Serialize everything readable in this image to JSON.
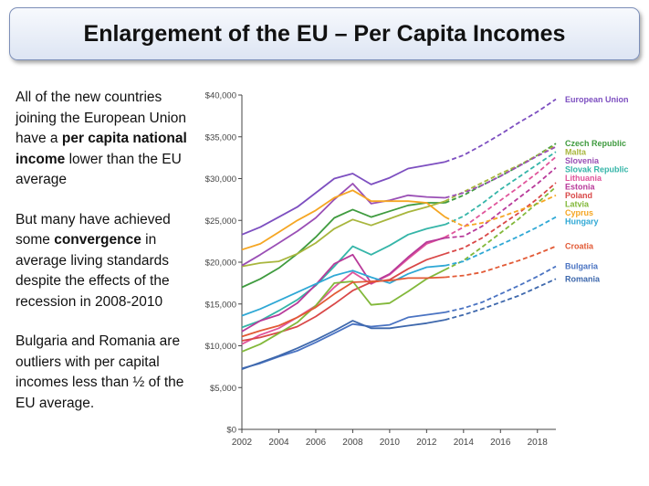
{
  "slide": {
    "title": "Enlargement of the EU – Per Capita Incomes",
    "para1": {
      "t1": "All of the new countries joining the European Union have a ",
      "b1": "per capita national income",
      "t2": " lower than the EU average"
    },
    "para2": {
      "t1": "But many have achieved some ",
      "b1": "convergence",
      "t2": " in average living standards despite the effects of the recession in 2008-2010"
    },
    "para3": "Bulgaria and Romania are outliers with per capital incomes less than ½ of the EU average."
  },
  "chart_data": {
    "type": "line",
    "x": [
      2002,
      2003,
      2004,
      2005,
      2006,
      2007,
      2008,
      2009,
      2010,
      2011,
      2012,
      2013,
      2014,
      2015,
      2016,
      2017,
      2018,
      2019
    ],
    "actual_until": 2013,
    "xticks": [
      2002,
      2004,
      2006,
      2008,
      2010,
      2012,
      2014,
      2016,
      2018
    ],
    "yticks": [
      "$0",
      "$5,000",
      "$10,000",
      "$15,000",
      "$20,000",
      "$25,000",
      "$30,000",
      "$35,000",
      "$40,000"
    ],
    "ylim": [
      0,
      40000
    ],
    "grid": false,
    "legend": "right",
    "series": [
      {
        "name": "European Union",
        "color": "#7d4fc0",
        "values": [
          23300,
          24200,
          25400,
          26600,
          28300,
          30000,
          30600,
          29300,
          30100,
          31200,
          31600,
          32000,
          32800,
          34000,
          35300,
          36700,
          38000,
          39500
        ]
      },
      {
        "name": "Czech Republic",
        "color": "#3f9b3f",
        "values": [
          17000,
          18000,
          19300,
          21000,
          23000,
          25300,
          26300,
          25400,
          26100,
          26800,
          27100,
          27100,
          28000,
          29200,
          30300,
          31500,
          32800,
          34200
        ]
      },
      {
        "name": "Malta",
        "color": "#a8b63d",
        "values": [
          19500,
          19900,
          20100,
          21000,
          22300,
          24000,
          25100,
          24400,
          25200,
          26000,
          26600,
          27300,
          28400,
          29500,
          30600,
          31600,
          32800,
          34000
        ]
      },
      {
        "name": "Slovenia",
        "color": "#9a4fb5",
        "values": [
          19600,
          20900,
          22300,
          23700,
          25300,
          27500,
          29400,
          27000,
          27400,
          28000,
          27800,
          27700,
          28300,
          29200,
          30300,
          31500,
          32700,
          33800
        ]
      },
      {
        "name": "Slovak Republic",
        "color": "#35b5a8",
        "values": [
          12200,
          13000,
          14200,
          15500,
          17200,
          19500,
          21900,
          20900,
          22000,
          23300,
          24000,
          24500,
          25500,
          27000,
          28700,
          30200,
          31700,
          33200
        ]
      },
      {
        "name": "Lithuania",
        "color": "#e0559b",
        "values": [
          10200,
          11300,
          12100,
          13400,
          14800,
          17000,
          18800,
          17400,
          18500,
          20400,
          22200,
          23000,
          24200,
          25800,
          27400,
          29000,
          30700,
          32600
        ]
      },
      {
        "name": "Estonia",
        "color": "#b83a9a",
        "values": [
          11700,
          13000,
          13700,
          15100,
          17300,
          19800,
          20900,
          17500,
          18600,
          20600,
          22400,
          22900,
          23100,
          24300,
          26000,
          27700,
          29400,
          31300
        ]
      },
      {
        "name": "Poland",
        "color": "#d94848",
        "values": [
          10600,
          11000,
          11600,
          12300,
          13500,
          15000,
          16600,
          17600,
          17900,
          19200,
          20300,
          21000,
          21700,
          22900,
          24400,
          25900,
          27600,
          29500
        ]
      },
      {
        "name": "Cyprus",
        "color": "#f5a623",
        "values": [
          21500,
          22200,
          23600,
          25000,
          26200,
          27700,
          28600,
          27300,
          27300,
          27300,
          27100,
          25400,
          24300,
          24700,
          25400,
          26200,
          27000,
          28000
        ]
      },
      {
        "name": "Latvia",
        "color": "#82b83a",
        "values": [
          9300,
          10200,
          11500,
          12800,
          14800,
          17500,
          17700,
          14900,
          15100,
          16500,
          18000,
          19100,
          20200,
          21800,
          23500,
          25200,
          27100,
          29000
        ]
      },
      {
        "name": "Hungary",
        "color": "#2fa8d5",
        "values": [
          13600,
          14400,
          15400,
          16400,
          17400,
          18400,
          19000,
          18200,
          17500,
          18600,
          19400,
          19600,
          20100,
          21100,
          22100,
          23100,
          24200,
          25400
        ]
      },
      {
        "name": "Croatia",
        "color": "#e25a36",
        "values": [
          11100,
          11800,
          12400,
          13400,
          14600,
          16200,
          17600,
          17700,
          17800,
          18100,
          18100,
          18200,
          18400,
          18800,
          19500,
          20200,
          21000,
          21900
        ]
      },
      {
        "name": "Bulgaria",
        "color": "#4a73c2",
        "values": [
          7300,
          7900,
          8700,
          9400,
          10400,
          11500,
          12600,
          12300,
          12500,
          13400,
          13700,
          14000,
          14500,
          15200,
          16200,
          17200,
          18300,
          19500
        ]
      },
      {
        "name": "Romania",
        "color": "#3e68ac",
        "values": [
          7200,
          8000,
          8800,
          9700,
          10700,
          11800,
          13000,
          12100,
          12100,
          12400,
          12700,
          13100,
          13700,
          14400,
          15200,
          16000,
          17000,
          18000
        ]
      }
    ]
  }
}
